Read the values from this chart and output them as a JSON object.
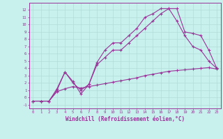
{
  "xlabel": "Windchill (Refroidissement éolien,°C)",
  "background_color": "#c8f0ec",
  "grid_color": "#b0dcd8",
  "line_color": "#993399",
  "xlim": [
    -0.5,
    23.5
  ],
  "ylim": [
    -1.5,
    13.0
  ],
  "xticks": [
    0,
    1,
    2,
    3,
    4,
    5,
    6,
    7,
    8,
    9,
    10,
    11,
    12,
    13,
    14,
    15,
    16,
    17,
    18,
    19,
    20,
    21,
    22,
    23
  ],
  "yticks": [
    -1,
    0,
    1,
    2,
    3,
    4,
    5,
    6,
    7,
    8,
    9,
    10,
    11,
    12
  ],
  "line1_x": [
    0,
    1,
    2,
    3,
    4,
    5,
    6,
    7,
    8,
    9,
    10,
    11,
    12,
    13,
    14,
    15,
    16,
    17,
    18,
    19,
    20,
    21,
    22,
    23
  ],
  "line1_y": [
    -0.5,
    -0.5,
    -0.5,
    0.8,
    1.2,
    1.5,
    1.3,
    1.5,
    1.7,
    1.9,
    2.1,
    2.3,
    2.5,
    2.7,
    3.0,
    3.2,
    3.4,
    3.6,
    3.7,
    3.8,
    3.9,
    4.0,
    4.1,
    3.9
  ],
  "line2_x": [
    0,
    1,
    2,
    3,
    4,
    5,
    6,
    7,
    8,
    9,
    10,
    11,
    12,
    13,
    14,
    15,
    16,
    17,
    18,
    19,
    20,
    21,
    22,
    23
  ],
  "line2_y": [
    -0.5,
    -0.5,
    -0.5,
    1.0,
    3.5,
    2.0,
    1.0,
    1.8,
    4.5,
    5.5,
    6.5,
    6.5,
    7.5,
    8.5,
    9.5,
    10.5,
    11.5,
    12.2,
    12.2,
    9.0,
    8.8,
    8.5,
    6.5,
    4.0
  ],
  "line3_x": [
    0,
    1,
    2,
    3,
    4,
    5,
    6,
    7,
    8,
    9,
    10,
    11,
    12,
    13,
    14,
    15,
    16,
    17,
    18,
    19,
    20,
    21,
    22,
    23
  ],
  "line3_y": [
    -0.5,
    -0.5,
    -0.5,
    1.2,
    3.5,
    2.2,
    0.5,
    1.8,
    4.8,
    6.5,
    7.5,
    7.5,
    8.5,
    9.5,
    11.0,
    11.5,
    12.2,
    12.2,
    10.5,
    8.5,
    7.0,
    6.5,
    5.0,
    4.0
  ]
}
